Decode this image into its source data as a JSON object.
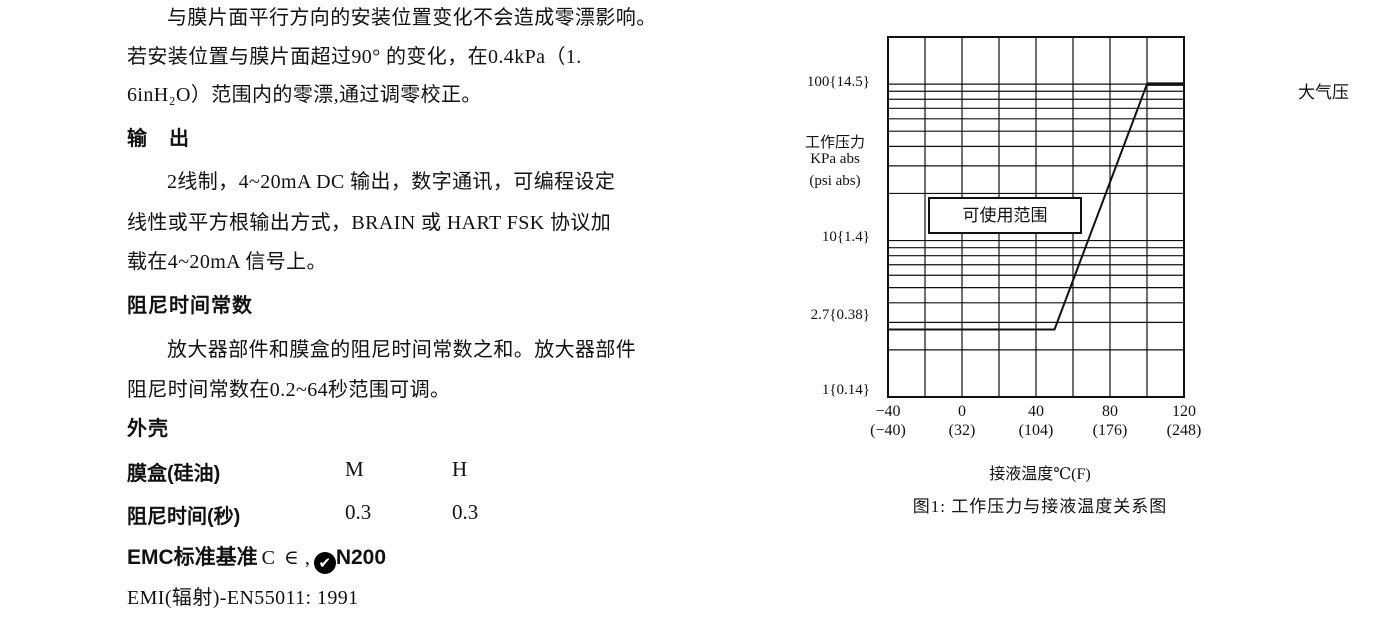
{
  "specs": {
    "mounting_note": {
      "line1": "与膜片面平行方向的安装位置变化不会造成零漂影响。",
      "line2": "若安装位置与膜片面超过90° 的变化，在0.4kPa（1.",
      "line3": "6inH₂O）范围内的零漂,通过调零校正。"
    },
    "output": {
      "heading": "输　出",
      "line1": "2线制，4~20mA DC 输出，数字通讯，可编程设定",
      "line2": "线性或平方根输出方式，BRAIN 或 HART FSK 协议加",
      "line3": "载在4~20mA 信号上。"
    },
    "damping": {
      "heading": "阻尼时间常数",
      "line1": "放大器部件和膜盒的阻尼时间常数之和。放大器部件",
      "line2": "阻尼时间常数在0.2~64秒范围可调。"
    },
    "housing": {
      "heading": "外壳",
      "table": {
        "rows": [
          {
            "label": "膜盒(硅油)",
            "m": "M",
            "h": "H"
          },
          {
            "label": "阻尼时间(秒)",
            "m": "0.3",
            "h": "0.3"
          }
        ]
      }
    },
    "emc": {
      "prefix": "EMC标准基准",
      "ce_mark": "C ∈",
      "separator": ",",
      "ctick_check": "✔",
      "ctick_code": "N200"
    },
    "emi": "EMI(辐射)-EN55011: 1991"
  },
  "figure": {
    "y_axis": {
      "title_lines": [
        "工作压力",
        "KPa abs",
        "(psi abs)"
      ],
      "ticks": [
        {
          "label": "100{14.5}",
          "value": 100
        },
        {
          "label": "10{1.4}",
          "value": 10
        },
        {
          "label": "2.7{0.38}",
          "value": 2.7
        },
        {
          "label": "1{0.14}",
          "value": 1
        }
      ]
    },
    "x_axis": {
      "label": "接液温度℃(F)",
      "ticks": [
        {
          "c": "−40",
          "f": "(−40)"
        },
        {
          "c": "0",
          "f": "(32)"
        },
        {
          "c": "40",
          "f": "(104)"
        },
        {
          "c": "80",
          "f": "(176)"
        },
        {
          "c": "120",
          "f": "(248)"
        }
      ]
    },
    "annotations": {
      "atmospheric": "大气压",
      "usable_range": "可使用范围"
    },
    "caption": "图1: 工作压力与接液温度关系图"
  },
  "chart_data": {
    "type": "line",
    "title": "图1: 工作压力与接液温度关系图",
    "xlabel": "接液温度℃(F)",
    "ylabel": "工作压力 KPa abs (psi abs)",
    "y_scale": "log",
    "xlim": [
      -40,
      120
    ],
    "ylim": [
      1,
      200
    ],
    "x_tick_step": 20,
    "x_ticks_celsius": [
      -40,
      0,
      40,
      80,
      120
    ],
    "x_ticks_fahrenheit": [
      -40,
      32,
      104,
      176,
      248
    ],
    "y_tick_values": [
      100,
      10,
      2.7,
      1
    ],
    "y_tick_labels": [
      "100{14.5}",
      "10{1.4}",
      "2.7{0.38}",
      "1{0.14}"
    ],
    "grid": true,
    "grid_max": 100,
    "series": [
      {
        "name": "可使用范围",
        "points": [
          [
            -40,
            2.7
          ],
          [
            50,
            2.7
          ],
          [
            100,
            100
          ]
        ],
        "width": 2
      },
      {
        "name": "大气压",
        "points": [
          [
            100,
            100
          ],
          [
            120,
            100
          ]
        ],
        "width": 3.5
      }
    ],
    "annotations": [
      "可使用范围",
      "大气压"
    ],
    "legend_position": "none"
  }
}
